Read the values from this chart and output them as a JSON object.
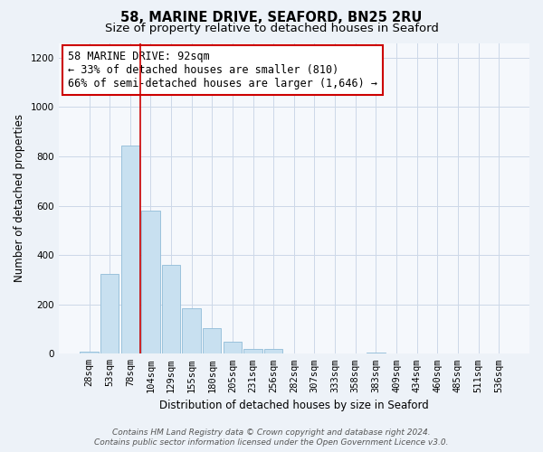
{
  "title": "58, MARINE DRIVE, SEAFORD, BN25 2RU",
  "subtitle": "Size of property relative to detached houses in Seaford",
  "xlabel": "Distribution of detached houses by size in Seaford",
  "ylabel": "Number of detached properties",
  "bin_labels": [
    "28sqm",
    "53sqm",
    "78sqm",
    "104sqm",
    "129sqm",
    "155sqm",
    "180sqm",
    "205sqm",
    "231sqm",
    "256sqm",
    "282sqm",
    "307sqm",
    "333sqm",
    "358sqm",
    "383sqm",
    "409sqm",
    "434sqm",
    "460sqm",
    "485sqm",
    "511sqm",
    "536sqm"
  ],
  "bar_values": [
    10,
    325,
    845,
    580,
    360,
    185,
    105,
    47,
    18,
    18,
    0,
    0,
    0,
    0,
    6,
    0,
    0,
    0,
    0,
    0,
    0
  ],
  "bar_color": "#c8e0f0",
  "bar_edge_color": "#90bcd8",
  "vline_x_data": 2.5,
  "vline_color": "#cc0000",
  "annotation_line1": "58 MARINE DRIVE: 92sqm",
  "annotation_line2": "← 33% of detached houses are smaller (810)",
  "annotation_line3": "66% of semi-detached houses are larger (1,646) →",
  "annotation_box_color": "#ffffff",
  "annotation_box_edge_color": "#cc0000",
  "ylim": [
    0,
    1260
  ],
  "yticks": [
    0,
    200,
    400,
    600,
    800,
    1000,
    1200
  ],
  "footer_line1": "Contains HM Land Registry data © Crown copyright and database right 2024.",
  "footer_line2": "Contains public sector information licensed under the Open Government Licence v3.0.",
  "bg_color": "#edf2f8",
  "plot_bg_color": "#f5f8fc",
  "grid_color": "#ccd8e8",
  "title_fontsize": 10.5,
  "subtitle_fontsize": 9.5,
  "axis_label_fontsize": 8.5,
  "tick_fontsize": 7.5,
  "annotation_fontsize": 8.5,
  "footer_fontsize": 6.5
}
